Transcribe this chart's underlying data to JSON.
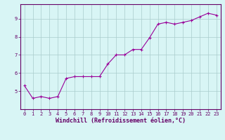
{
  "x": [
    0,
    1,
    2,
    3,
    4,
    5,
    6,
    7,
    8,
    9,
    10,
    11,
    12,
    13,
    14,
    15,
    16,
    17,
    18,
    19,
    20,
    21,
    22,
    23
  ],
  "y": [
    5.3,
    4.6,
    4.7,
    4.6,
    4.7,
    5.7,
    5.8,
    5.8,
    5.8,
    5.8,
    6.5,
    7.0,
    7.0,
    7.3,
    7.3,
    7.95,
    8.7,
    8.8,
    8.7,
    8.8,
    8.9,
    9.1,
    9.3,
    9.2
  ],
  "line_color": "#990099",
  "marker": "+",
  "marker_size": 3,
  "bg_color": "#d8f5f5",
  "grid_color": "#aacccc",
  "xlabel": "Windchill (Refroidissement éolien,°C)",
  "xlabel_color": "#660066",
  "xlabel_fontsize": 6,
  "tick_color": "#660066",
  "tick_fontsize": 5,
  "ylim": [
    4.0,
    9.8
  ],
  "xlim": [
    -0.5,
    23.5
  ],
  "yticks": [
    5,
    6,
    7,
    8,
    9
  ],
  "xticks": [
    0,
    1,
    2,
    3,
    4,
    5,
    6,
    7,
    8,
    9,
    10,
    11,
    12,
    13,
    14,
    15,
    16,
    17,
    18,
    19,
    20,
    21,
    22,
    23
  ],
  "spine_color": "#660066",
  "figsize": [
    3.2,
    2.0
  ],
  "dpi": 100
}
